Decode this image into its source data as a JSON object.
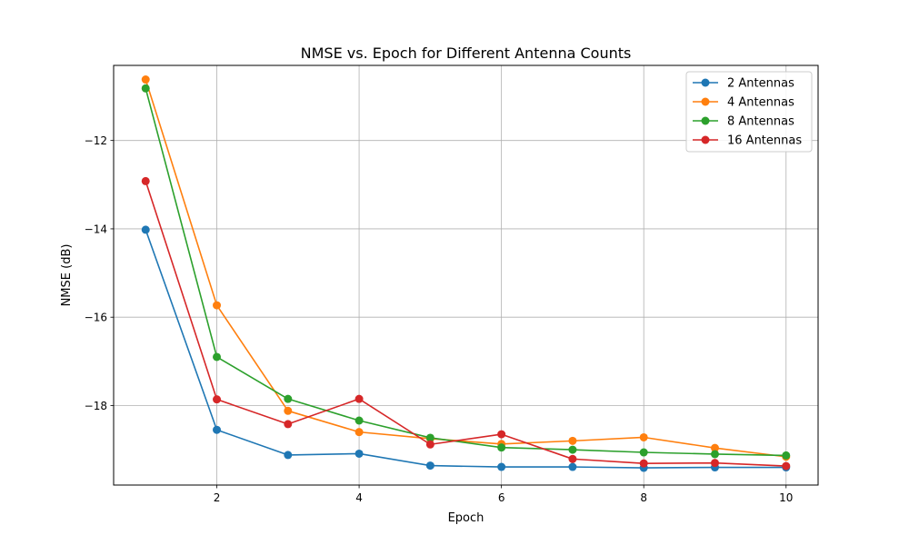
{
  "chart_data": {
    "type": "line",
    "title": "NMSE vs. Epoch for Different Antenna Counts",
    "xlabel": "Epoch",
    "ylabel": "NMSE (dB)",
    "xlim": [
      0.55,
      10.45
    ],
    "ylim": [
      -19.8,
      -10.3
    ],
    "xticks": [
      2,
      4,
      6,
      8,
      10
    ],
    "yticks": [
      -12,
      -14,
      -16,
      -18
    ],
    "grid": true,
    "legend_position": "top-right",
    "x": [
      1,
      2,
      3,
      4,
      5,
      6,
      7,
      8,
      9,
      10
    ],
    "series": [
      {
        "name": "2 Antennas",
        "color": "#1f77b4",
        "values": [
          -14.02,
          -18.55,
          -19.12,
          -19.09,
          -19.36,
          -19.39,
          -19.39,
          -19.41,
          -19.4,
          -19.4
        ]
      },
      {
        "name": "4 Antennas",
        "color": "#ff7f0e",
        "values": [
          -10.62,
          -15.73,
          -18.12,
          -18.6,
          -18.75,
          -18.87,
          -18.8,
          -18.72,
          -18.96,
          -19.16
        ]
      },
      {
        "name": "8 Antennas",
        "color": "#2ca02c",
        "values": [
          -10.82,
          -16.9,
          -17.85,
          -18.34,
          -18.73,
          -18.95,
          -19.0,
          -19.06,
          -19.1,
          -19.13
        ]
      },
      {
        "name": "16 Antennas",
        "color": "#d62728",
        "values": [
          -12.92,
          -17.86,
          -18.42,
          -17.85,
          -18.88,
          -18.65,
          -19.21,
          -19.31,
          -19.3,
          -19.37
        ]
      }
    ]
  }
}
